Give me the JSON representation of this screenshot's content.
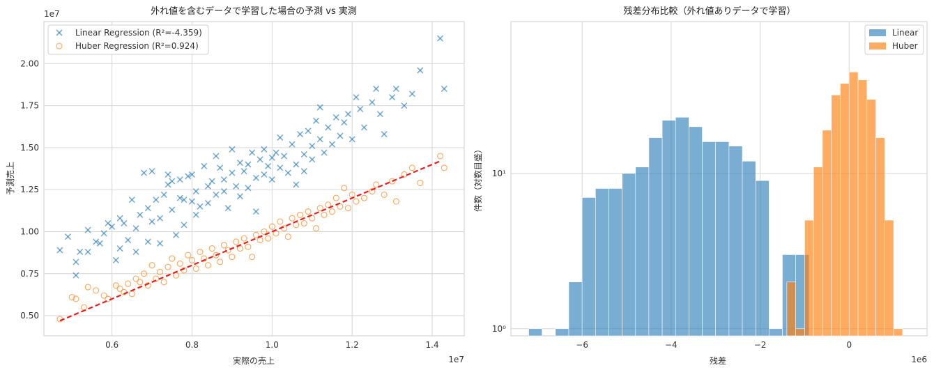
{
  "chart_data": [
    {
      "type": "scatter",
      "title": "外れ値を含むデータで学習した場合の予測 vs 実測",
      "xlabel": "実際の売上",
      "ylabel": "予測売上",
      "x_offset_label": "1e7",
      "y_offset_label": "1e7",
      "xlim": [
        0.43,
        1.48
      ],
      "ylim": [
        0.38,
        2.25
      ],
      "xticks": [
        0.6,
        0.8,
        1.0,
        1.2,
        1.4
      ],
      "xtick_labels": [
        "0.6",
        "0.8",
        "1.0",
        "1.2",
        "1.4"
      ],
      "yticks": [
        0.5,
        0.75,
        1.0,
        1.25,
        1.5,
        1.75,
        2.0
      ],
      "ytick_labels": [
        "0.50",
        "0.75",
        "1.00",
        "1.25",
        "1.50",
        "1.75",
        "2.00"
      ],
      "grid": true,
      "legend_position": "top-left",
      "reference_line": {
        "x": [
          0.47,
          1.42
        ],
        "y": [
          0.47,
          1.42
        ],
        "color": "#ee1c1c",
        "style": "dashed"
      },
      "series": [
        {
          "name": "Linear Regression (R²=-4.359)",
          "marker": "x",
          "color": "#1f77b4",
          "points": [
            [
              0.47,
              0.89
            ],
            [
              0.49,
              0.97
            ],
            [
              0.51,
              0.74
            ],
            [
              0.51,
              0.82
            ],
            [
              0.52,
              0.88
            ],
            [
              0.54,
              0.88
            ],
            [
              0.54,
              1.01
            ],
            [
              0.56,
              0.94
            ],
            [
              0.57,
              0.93
            ],
            [
              0.58,
              0.99
            ],
            [
              0.59,
              1.05
            ],
            [
              0.6,
              1.03
            ],
            [
              0.61,
              0.83
            ],
            [
              0.62,
              0.9
            ],
            [
              0.62,
              1.08
            ],
            [
              0.63,
              1.05
            ],
            [
              0.64,
              0.95
            ],
            [
              0.65,
              1.19
            ],
            [
              0.66,
              1.02
            ],
            [
              0.66,
              0.88
            ],
            [
              0.67,
              1.1
            ],
            [
              0.68,
              1.35
            ],
            [
              0.69,
              0.94
            ],
            [
              0.69,
              1.14
            ],
            [
              0.7,
              1.06
            ],
            [
              0.7,
              1.36
            ],
            [
              0.71,
              1.19
            ],
            [
              0.72,
              0.93
            ],
            [
              0.72,
              1.08
            ],
            [
              0.73,
              1.22
            ],
            [
              0.74,
              1.28
            ],
            [
              0.74,
              1.34
            ],
            [
              0.75,
              1.3
            ],
            [
              0.75,
              1.13
            ],
            [
              0.76,
              0.98
            ],
            [
              0.77,
              1.31
            ],
            [
              0.77,
              1.2
            ],
            [
              0.78,
              1.04
            ],
            [
              0.78,
              1.19
            ],
            [
              0.79,
              1.33
            ],
            [
              0.8,
              1.34
            ],
            [
              0.8,
              1.18
            ],
            [
              0.81,
              1.24
            ],
            [
              0.81,
              1.1
            ],
            [
              0.82,
              1.15
            ],
            [
              0.83,
              1.39
            ],
            [
              0.84,
              1.27
            ],
            [
              0.84,
              1.17
            ],
            [
              0.85,
              1.3
            ],
            [
              0.86,
              1.22
            ],
            [
              0.86,
              1.45
            ],
            [
              0.87,
              1.38
            ],
            [
              0.88,
              1.24
            ],
            [
              0.88,
              1.31
            ],
            [
              0.89,
              1.14
            ],
            [
              0.9,
              1.49
            ],
            [
              0.9,
              1.35
            ],
            [
              0.91,
              1.27
            ],
            [
              0.92,
              1.41
            ],
            [
              0.92,
              1.21
            ],
            [
              0.93,
              1.36
            ],
            [
              0.94,
              1.4
            ],
            [
              0.94,
              1.26
            ],
            [
              0.95,
              1.47
            ],
            [
              0.96,
              1.32
            ],
            [
              0.96,
              1.12
            ],
            [
              0.97,
              1.43
            ],
            [
              0.98,
              1.34
            ],
            [
              0.98,
              1.49
            ],
            [
              0.99,
              1.39
            ],
            [
              1.0,
              1.44
            ],
            [
              1.0,
              1.31
            ],
            [
              1.01,
              1.47
            ],
            [
              1.02,
              1.38
            ],
            [
              1.02,
              1.56
            ],
            [
              1.03,
              1.45
            ],
            [
              1.04,
              1.35
            ],
            [
              1.05,
              1.52
            ],
            [
              1.06,
              1.4
            ],
            [
              1.06,
              1.28
            ],
            [
              1.07,
              1.58
            ],
            [
              1.08,
              1.46
            ],
            [
              1.08,
              1.36
            ],
            [
              1.09,
              1.6
            ],
            [
              1.1,
              1.51
            ],
            [
              1.1,
              1.43
            ],
            [
              1.11,
              1.66
            ],
            [
              1.12,
              1.55
            ],
            [
              1.12,
              1.74
            ],
            [
              1.13,
              1.47
            ],
            [
              1.14,
              1.62
            ],
            [
              1.15,
              1.52
            ],
            [
              1.16,
              1.68
            ],
            [
              1.17,
              1.57
            ],
            [
              1.18,
              1.65
            ],
            [
              1.19,
              1.7
            ],
            [
              1.2,
              1.55
            ],
            [
              1.21,
              1.8
            ],
            [
              1.22,
              1.73
            ],
            [
              1.23,
              1.62
            ],
            [
              1.25,
              1.77
            ],
            [
              1.26,
              1.85
            ],
            [
              1.27,
              1.7
            ],
            [
              1.28,
              1.58
            ],
            [
              1.3,
              1.8
            ],
            [
              1.31,
              1.85
            ],
            [
              1.33,
              1.75
            ],
            [
              1.35,
              1.82
            ],
            [
              1.37,
              1.96
            ],
            [
              1.42,
              2.15
            ],
            [
              1.43,
              1.85
            ]
          ]
        },
        {
          "name": "Huber Regression (R²=0.924)",
          "marker": "o",
          "color": "#ff7f0e",
          "points": [
            [
              0.47,
              0.48
            ],
            [
              0.5,
              0.61
            ],
            [
              0.51,
              0.6
            ],
            [
              0.53,
              0.55
            ],
            [
              0.54,
              0.67
            ],
            [
              0.56,
              0.65
            ],
            [
              0.58,
              0.62
            ],
            [
              0.59,
              0.6
            ],
            [
              0.61,
              0.68
            ],
            [
              0.62,
              0.66
            ],
            [
              0.63,
              0.64
            ],
            [
              0.64,
              0.69
            ],
            [
              0.65,
              0.63
            ],
            [
              0.66,
              0.72
            ],
            [
              0.67,
              0.7
            ],
            [
              0.68,
              0.75
            ],
            [
              0.69,
              0.68
            ],
            [
              0.7,
              0.8
            ],
            [
              0.71,
              0.72
            ],
            [
              0.72,
              0.76
            ],
            [
              0.73,
              0.7
            ],
            [
              0.74,
              0.79
            ],
            [
              0.75,
              0.84
            ],
            [
              0.76,
              0.74
            ],
            [
              0.77,
              0.81
            ],
            [
              0.78,
              0.77
            ],
            [
              0.79,
              0.86
            ],
            [
              0.8,
              0.83
            ],
            [
              0.81,
              0.78
            ],
            [
              0.82,
              0.88
            ],
            [
              0.83,
              0.84
            ],
            [
              0.84,
              0.8
            ],
            [
              0.85,
              0.9
            ],
            [
              0.86,
              0.86
            ],
            [
              0.87,
              0.82
            ],
            [
              0.88,
              0.92
            ],
            [
              0.89,
              0.89
            ],
            [
              0.9,
              0.85
            ],
            [
              0.91,
              0.94
            ],
            [
              0.92,
              0.9
            ],
            [
              0.93,
              0.96
            ],
            [
              0.94,
              0.91
            ],
            [
              0.95,
              0.85
            ],
            [
              0.96,
              0.98
            ],
            [
              0.97,
              0.95
            ],
            [
              0.98,
              1.0
            ],
            [
              0.99,
              0.96
            ],
            [
              1.0,
              1.03
            ],
            [
              1.01,
              0.99
            ],
            [
              1.02,
              1.06
            ],
            [
              1.03,
              1.02
            ],
            [
              1.04,
              0.97
            ],
            [
              1.05,
              1.08
            ],
            [
              1.06,
              1.04
            ],
            [
              1.07,
              1.1
            ],
            [
              1.08,
              1.05
            ],
            [
              1.09,
              1.12
            ],
            [
              1.1,
              1.08
            ],
            [
              1.11,
              1.02
            ],
            [
              1.12,
              1.14
            ],
            [
              1.13,
              1.1
            ],
            [
              1.14,
              1.16
            ],
            [
              1.15,
              1.12
            ],
            [
              1.16,
              1.2
            ],
            [
              1.17,
              1.15
            ],
            [
              1.18,
              1.26
            ],
            [
              1.19,
              1.14
            ],
            [
              1.2,
              1.22
            ],
            [
              1.21,
              1.18
            ],
            [
              1.23,
              1.2
            ],
            [
              1.25,
              1.24
            ],
            [
              1.26,
              1.28
            ],
            [
              1.28,
              1.22
            ],
            [
              1.3,
              1.3
            ],
            [
              1.31,
              1.18
            ],
            [
              1.33,
              1.34
            ],
            [
              1.35,
              1.38
            ],
            [
              1.37,
              1.29
            ],
            [
              1.42,
              1.45
            ],
            [
              1.43,
              1.38
            ]
          ]
        }
      ]
    },
    {
      "type": "bar",
      "subtype": "histogram",
      "title": "残差分布比較（外れ値ありデータで学習）",
      "xlabel": "残差",
      "ylabel": "件数（対数目盛）",
      "x_offset_label": "1e6",
      "yscale": "log",
      "xlim": [
        -7.6,
        1.75
      ],
      "ylim": [
        0.9,
        95
      ],
      "xticks": [
        -6,
        -4,
        -2,
        0
      ],
      "xtick_labels": [
        "−6",
        "−4",
        "−2",
        "0"
      ],
      "yticks": [
        1,
        10
      ],
      "ytick_labels": [
        "10⁰",
        "10¹"
      ],
      "grid": true,
      "legend_position": "top-right",
      "series": [
        {
          "name": "Linear",
          "color": "#1f77b4",
          "bin_width": 0.3,
          "bin_starts": [
            -7.2,
            -6.9,
            -6.6,
            -6.3,
            -6.0,
            -5.7,
            -5.4,
            -5.1,
            -4.8,
            -4.5,
            -4.2,
            -3.9,
            -3.6,
            -3.3,
            -3.0,
            -2.7,
            -2.4,
            -2.1,
            -1.8,
            -1.5,
            -1.2
          ],
          "counts": [
            1,
            0,
            1,
            2,
            7,
            8,
            8,
            10,
            11,
            17,
            22,
            23,
            20,
            16,
            16,
            15,
            12,
            9,
            1,
            3,
            3
          ]
        },
        {
          "name": "Huber",
          "color": "#ff7f0e",
          "bin_width": 0.2,
          "bin_starts": [
            -1.4,
            -1.2,
            -1.0,
            -0.8,
            -0.6,
            -0.4,
            -0.2,
            0.0,
            0.2,
            0.4,
            0.6,
            0.8,
            1.0
          ],
          "counts": [
            2,
            1,
            5,
            11,
            19,
            32,
            38,
            45,
            40,
            30,
            17,
            5,
            1
          ]
        }
      ]
    }
  ]
}
